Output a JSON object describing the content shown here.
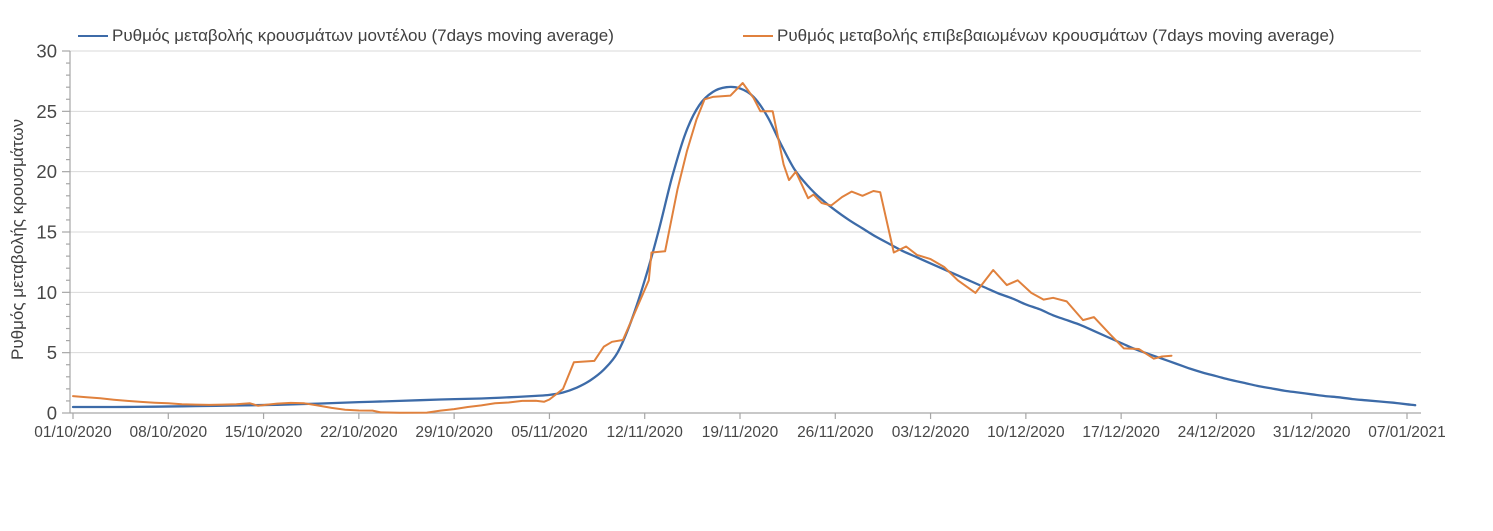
{
  "chart_data": {
    "type": "line",
    "title": "",
    "xlabel": "",
    "ylabel": "Ρυθμός μεταβολής κρουσμάτων",
    "ylim": [
      0,
      30
    ],
    "y_major_step": 5,
    "y_minor_step": 1,
    "grid": "horizontal",
    "legend_position": "top",
    "x_tick_interval_days": 7,
    "x_range_days": [
      0,
      98
    ],
    "x_tick_labels": [
      "01/10/2020",
      "08/10/2020",
      "15/10/2020",
      "22/10/2020",
      "29/10/2020",
      "05/11/2020",
      "12/11/2020",
      "19/11/2020",
      "26/11/2020",
      "03/12/2020",
      "10/12/2020",
      "17/12/2020",
      "24/12/2020",
      "31/12/2020",
      "07/01/2021"
    ],
    "colors": {
      "grid": "#d9d9d9",
      "axis": "#a6a6a6",
      "text": "#474747"
    },
    "series": [
      {
        "name": "Ρυθμός μεταβολής κρουσμάτων μοντέλου (7days moving average)",
        "color": "#3d6ba8",
        "smooth": true,
        "points": [
          [
            0,
            0.5
          ],
          [
            3,
            0.5
          ],
          [
            6,
            0.52
          ],
          [
            9,
            0.57
          ],
          [
            12,
            0.62
          ],
          [
            15,
            0.68
          ],
          [
            18,
            0.78
          ],
          [
            21,
            0.9
          ],
          [
            24,
            1.0
          ],
          [
            27,
            1.12
          ],
          [
            30,
            1.2
          ],
          [
            32,
            1.3
          ],
          [
            34,
            1.42
          ],
          [
            35,
            1.5
          ],
          [
            36,
            1.7
          ],
          [
            37,
            2.1
          ],
          [
            38,
            2.7
          ],
          [
            39,
            3.6
          ],
          [
            40,
            5.0
          ],
          [
            41,
            7.6
          ],
          [
            42,
            11.0
          ],
          [
            43,
            15.0
          ],
          [
            44,
            19.5
          ],
          [
            45,
            23.2
          ],
          [
            46,
            25.5
          ],
          [
            47,
            26.6
          ],
          [
            48,
            27.0
          ],
          [
            49,
            26.9
          ],
          [
            50,
            26.2
          ],
          [
            51,
            24.6
          ],
          [
            52,
            22.3
          ],
          [
            53,
            20.2
          ],
          [
            54,
            18.8
          ],
          [
            55,
            17.7
          ],
          [
            56,
            16.8
          ],
          [
            57,
            16.0
          ],
          [
            58,
            15.3
          ],
          [
            59,
            14.6
          ],
          [
            60,
            14.0
          ],
          [
            61,
            13.4
          ],
          [
            62,
            12.9
          ],
          [
            63,
            12.4
          ],
          [
            64,
            11.9
          ],
          [
            65,
            11.4
          ],
          [
            66,
            10.9
          ],
          [
            67,
            10.4
          ],
          [
            68,
            9.9
          ],
          [
            69,
            9.5
          ],
          [
            70,
            9.0
          ],
          [
            71,
            8.6
          ],
          [
            72,
            8.1
          ],
          [
            73,
            7.7
          ],
          [
            74,
            7.3
          ],
          [
            75,
            6.8
          ],
          [
            76,
            6.3
          ],
          [
            77,
            5.8
          ],
          [
            78,
            5.3
          ],
          [
            79,
            4.9
          ],
          [
            80,
            4.5
          ],
          [
            81,
            4.1
          ],
          [
            82,
            3.7
          ],
          [
            83,
            3.35
          ],
          [
            84,
            3.05
          ],
          [
            85,
            2.75
          ],
          [
            86,
            2.5
          ],
          [
            87,
            2.25
          ],
          [
            88,
            2.05
          ],
          [
            89,
            1.85
          ],
          [
            90,
            1.7
          ],
          [
            91,
            1.55
          ],
          [
            92,
            1.4
          ],
          [
            93,
            1.3
          ],
          [
            94,
            1.15
          ],
          [
            95,
            1.05
          ],
          [
            96,
            0.95
          ],
          [
            97,
            0.85
          ],
          [
            98,
            0.72
          ],
          [
            98.6,
            0.65
          ]
        ]
      },
      {
        "name": "Ρυθμός μεταβολής επιβεβαιωμένων κρουσμάτων (7days moving average)",
        "color": "#e0813d",
        "smooth": false,
        "points": [
          [
            0,
            1.4
          ],
          [
            1,
            1.3
          ],
          [
            2,
            1.22
          ],
          [
            3,
            1.1
          ],
          [
            4,
            1.0
          ],
          [
            5,
            0.92
          ],
          [
            6,
            0.85
          ],
          [
            7,
            0.8
          ],
          [
            8,
            0.73
          ],
          [
            9,
            0.7
          ],
          [
            10,
            0.67
          ],
          [
            11,
            0.7
          ],
          [
            12,
            0.73
          ],
          [
            13,
            0.8
          ],
          [
            13.6,
            0.6
          ],
          [
            14.3,
            0.7
          ],
          [
            15,
            0.78
          ],
          [
            16,
            0.84
          ],
          [
            17,
            0.8
          ],
          [
            18,
            0.62
          ],
          [
            19,
            0.42
          ],
          [
            20,
            0.27
          ],
          [
            21,
            0.21
          ],
          [
            22,
            0.2
          ],
          [
            22.6,
            0.05
          ],
          [
            24,
            0.02
          ],
          [
            26,
            0.03
          ],
          [
            27,
            0.2
          ],
          [
            28,
            0.32
          ],
          [
            29,
            0.5
          ],
          [
            30,
            0.63
          ],
          [
            31,
            0.8
          ],
          [
            32,
            0.87
          ],
          [
            33,
            1.0
          ],
          [
            34,
            1.02
          ],
          [
            34.6,
            0.93
          ],
          [
            35,
            1.12
          ],
          [
            36,
            2.0
          ],
          [
            36.8,
            4.2
          ],
          [
            38.3,
            4.32
          ],
          [
            39,
            5.5
          ],
          [
            39.6,
            5.9
          ],
          [
            40.4,
            6.05
          ],
          [
            41,
            7.6
          ],
          [
            42.3,
            11.0
          ],
          [
            42.5,
            13.3
          ],
          [
            43.5,
            13.4
          ],
          [
            44.4,
            18.5
          ],
          [
            45.1,
            21.7
          ],
          [
            45.8,
            24.3
          ],
          [
            46.4,
            26.0
          ],
          [
            47,
            26.2
          ],
          [
            48.3,
            26.3
          ],
          [
            49.2,
            27.35
          ],
          [
            50,
            26.1
          ],
          [
            50.5,
            25.0
          ],
          [
            51.4,
            25.0
          ],
          [
            52.2,
            20.6
          ],
          [
            52.6,
            19.3
          ],
          [
            53.1,
            20.0
          ],
          [
            54,
            17.8
          ],
          [
            54.4,
            18.1
          ],
          [
            55,
            17.4
          ],
          [
            55.7,
            17.2
          ],
          [
            56.5,
            17.9
          ],
          [
            57.2,
            18.35
          ],
          [
            58,
            18.0
          ],
          [
            58.8,
            18.4
          ],
          [
            59.3,
            18.3
          ],
          [
            60.3,
            13.3
          ],
          [
            61.2,
            13.8
          ],
          [
            62,
            13.1
          ],
          [
            63,
            12.75
          ],
          [
            64,
            12.1
          ],
          [
            65,
            11.0
          ],
          [
            66.3,
            9.95
          ],
          [
            67.6,
            11.85
          ],
          [
            68.6,
            10.6
          ],
          [
            69.4,
            11.0
          ],
          [
            70.4,
            9.95
          ],
          [
            71.3,
            9.4
          ],
          [
            72,
            9.55
          ],
          [
            73,
            9.25
          ],
          [
            74.2,
            7.7
          ],
          [
            75,
            7.95
          ],
          [
            76.2,
            6.5
          ],
          [
            77.2,
            5.35
          ],
          [
            78.3,
            5.3
          ],
          [
            79.4,
            4.5
          ],
          [
            80,
            4.68
          ],
          [
            80.7,
            4.75
          ]
        ]
      }
    ]
  }
}
